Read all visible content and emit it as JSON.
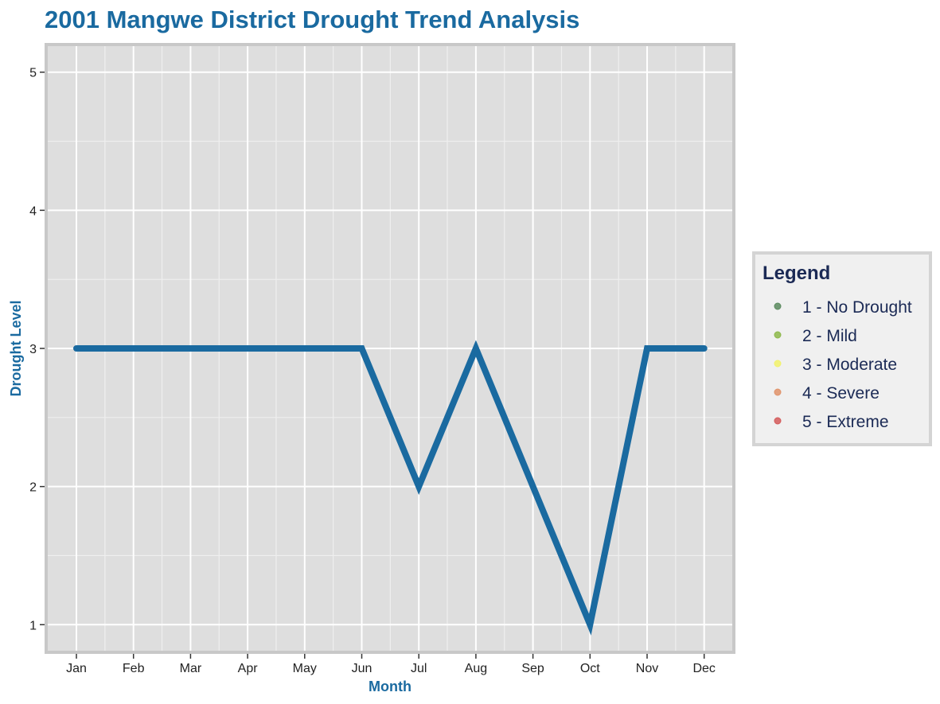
{
  "chart_data": {
    "type": "line",
    "title": "2001 Mangwe District Drought Trend Analysis",
    "xlabel": "Month",
    "ylabel": "Drought Level",
    "categories": [
      "Jan",
      "Feb",
      "Mar",
      "Apr",
      "May",
      "Jun",
      "Jul",
      "Aug",
      "Sep",
      "Oct",
      "Nov",
      "Dec"
    ],
    "values": [
      3,
      3,
      3,
      3,
      3,
      3,
      2,
      3,
      2,
      1,
      3,
      3
    ],
    "yticks": [
      "1",
      "2",
      "3",
      "4",
      "5"
    ],
    "ylim": [
      0.8,
      5.2
    ],
    "grid": true,
    "line_color": "#1a6aa0",
    "panel_color": "#dedede",
    "legend_position": "right",
    "legend": {
      "title": "Legend",
      "items": [
        {
          "label": "1 - No Drought",
          "color": "#5a8a5e"
        },
        {
          "label": "2 - Mild",
          "color": "#8db84a"
        },
        {
          "label": "3 - Moderate",
          "color": "#f2f26a"
        },
        {
          "label": "4 - Severe",
          "color": "#e0936a"
        },
        {
          "label": "5 - Extreme",
          "color": "#d45a5a"
        }
      ]
    }
  }
}
